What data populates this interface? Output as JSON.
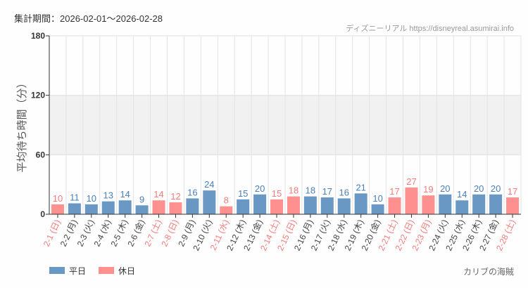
{
  "period_label": "集計期間：2026-02-01〜2026-02-28",
  "credit": "ディズニーリアル https://disneyreal.asumirai.info",
  "attraction": "カリブの海賊",
  "colors": {
    "weekday": "#6a98c4",
    "holiday": "#ff9090",
    "weekday_text": "#4a80b8",
    "holiday_text": "#f77b7b",
    "band": "#f1f1f1"
  },
  "chart_data": {
    "type": "bar",
    "ylabel": "平均待ち時間（分）",
    "ylim": [
      0,
      180
    ],
    "yticks": [
      0,
      60,
      120,
      180
    ],
    "grid": true,
    "shaded_band": [
      60,
      120
    ],
    "legend_position": "bottom-left",
    "series": [
      {
        "name": "平日",
        "color": "#6a98c4"
      },
      {
        "name": "休日",
        "color": "#ff9090"
      }
    ],
    "categories": [
      "2-1 (日)",
      "2-2 (月)",
      "2-3 (火)",
      "2-4 (水)",
      "2-5 (木)",
      "2-6 (金)",
      "2-7 (土)",
      "2-8 (日)",
      "2-9 (月)",
      "2-10 (火)",
      "2-11 (水)",
      "2-12 (木)",
      "2-13 (金)",
      "2-14 (土)",
      "2-15 (日)",
      "2-16 (月)",
      "2-17 (火)",
      "2-18 (水)",
      "2-19 (木)",
      "2-20 (金)",
      "2-21 (土)",
      "2-22 (日)",
      "2-23 (月)",
      "2-24 (火)",
      "2-25 (水)",
      "2-26 (木)",
      "2-27 (金)",
      "2-28 (土)"
    ],
    "values": [
      10,
      11,
      10,
      13,
      14,
      9,
      14,
      12,
      16,
      24,
      8,
      15,
      20,
      15,
      18,
      18,
      17,
      16,
      21,
      10,
      17,
      27,
      19,
      20,
      14,
      20,
      20,
      17
    ],
    "holiday": [
      true,
      false,
      false,
      false,
      false,
      false,
      true,
      true,
      false,
      false,
      true,
      false,
      false,
      true,
      true,
      false,
      false,
      false,
      false,
      false,
      true,
      true,
      true,
      false,
      false,
      false,
      false,
      true
    ]
  }
}
